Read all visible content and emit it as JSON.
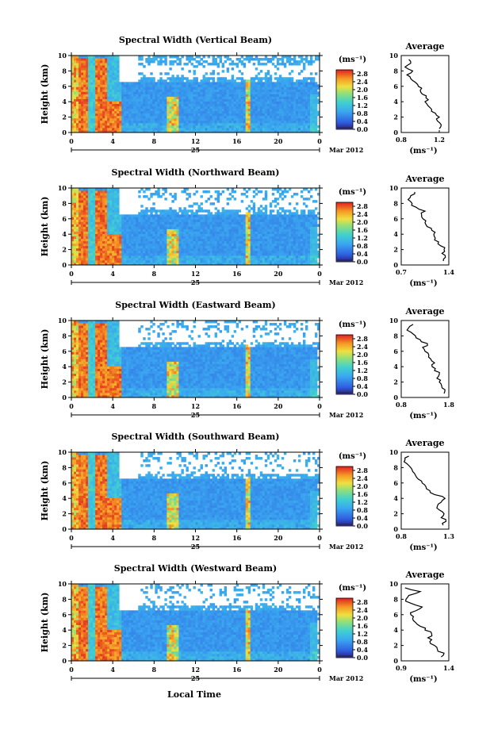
{
  "figure": {
    "xlabel": "Local Time",
    "colorbar_unit": "(ms⁻¹)",
    "average_title": "Average",
    "average_xlabel": "(ms⁻¹)",
    "date_day": "25",
    "date_month_year": "Mar 2012",
    "ylabel": "Height (km)"
  },
  "chart_data": [
    {
      "type": "heatmap",
      "title": "Spectral Width (Vertical Beam)",
      "xlabel": "Local Time",
      "ylabel": "Height (km)",
      "x_ticks": [
        "0",
        "4",
        "8",
        "12",
        "16",
        "20",
        "0"
      ],
      "y_ticks": [
        "0",
        "2",
        "4",
        "6",
        "8",
        "10"
      ],
      "xlim": [
        0,
        24
      ],
      "ylim": [
        0,
        10
      ],
      "colorbar": {
        "ticks": [
          "0.0",
          "0.4",
          "0.8",
          "1.2",
          "1.6",
          "2.0",
          "2.4",
          "2.8"
        ],
        "range": [
          0,
          3.0
        ]
      },
      "average_profile": {
        "x_ticks": [
          "0.8",
          "1.2"
        ],
        "xlim": [
          0.8,
          1.3
        ],
        "heights": [
          0.5,
          1,
          1.5,
          2,
          2.5,
          3,
          3.5,
          4,
          4.5,
          5,
          5.5,
          6,
          6.5,
          7,
          7.5,
          8,
          8.5,
          9,
          9.5
        ],
        "values": [
          1.2,
          1.22,
          1.18,
          1.2,
          1.16,
          1.12,
          1.08,
          1.05,
          1.06,
          1.02,
          1.0,
          0.98,
          0.95,
          0.9,
          0.86,
          0.92,
          0.84,
          0.9,
          0.88
        ]
      }
    },
    {
      "type": "heatmap",
      "title": "Spectral Width (Northward Beam)",
      "xlabel": "Local Time",
      "ylabel": "Height (km)",
      "x_ticks": [
        "0",
        "4",
        "8",
        "12",
        "16",
        "20",
        "0"
      ],
      "y_ticks": [
        "0",
        "2",
        "4",
        "6",
        "8",
        "10"
      ],
      "xlim": [
        0,
        24
      ],
      "ylim": [
        0,
        10
      ],
      "colorbar": {
        "ticks": [
          "0.0",
          "0.4",
          "0.8",
          "1.2",
          "1.6",
          "2.0",
          "2.4",
          "2.8"
        ],
        "range": [
          0,
          3.0
        ]
      },
      "average_profile": {
        "x_ticks": [
          "0.7",
          "1.4"
        ],
        "xlim": [
          0.7,
          1.4
        ],
        "heights": [
          0.5,
          1,
          1.5,
          2,
          2.5,
          3,
          3.5,
          4,
          4.5,
          5,
          5.5,
          6,
          6.5,
          7,
          7.5,
          8,
          8.5,
          9,
          9.5
        ],
        "values": [
          1.32,
          1.35,
          1.3,
          1.33,
          1.28,
          1.25,
          1.2,
          1.18,
          1.15,
          1.08,
          1.05,
          1.02,
          1.0,
          1.05,
          0.92,
          0.86,
          0.8,
          0.84,
          0.9
        ]
      }
    },
    {
      "type": "heatmap",
      "title": "Spectral Width (Eastward Beam)",
      "xlabel": "Local Time",
      "ylabel": "Height (km)",
      "x_ticks": [
        "0",
        "4",
        "8",
        "12",
        "16",
        "20",
        "0"
      ],
      "y_ticks": [
        "0",
        "2",
        "4",
        "6",
        "8",
        "10"
      ],
      "xlim": [
        0,
        24
      ],
      "ylim": [
        0,
        10
      ],
      "colorbar": {
        "ticks": [
          "0.0",
          "0.4",
          "0.8",
          "1.2",
          "1.6",
          "2.0",
          "2.4",
          "2.8"
        ],
        "range": [
          0,
          3.0
        ]
      },
      "average_profile": {
        "x_ticks": [
          "0.8",
          "1.8"
        ],
        "xlim": [
          0.8,
          1.8
        ],
        "heights": [
          0.5,
          1,
          1.5,
          2,
          2.5,
          3,
          3.5,
          4,
          4.5,
          5,
          5.5,
          6,
          6.5,
          7,
          7.5,
          8,
          8.5,
          9,
          9.5
        ],
        "values": [
          1.7,
          1.72,
          1.65,
          1.6,
          1.55,
          1.6,
          1.5,
          1.45,
          1.5,
          1.42,
          1.38,
          1.3,
          1.25,
          1.35,
          1.2,
          1.1,
          1.0,
          0.95,
          1.05
        ]
      }
    },
    {
      "type": "heatmap",
      "title": "Spectral Width (Southward Beam)",
      "xlabel": "Local Time",
      "ylabel": "Height (km)",
      "x_ticks": [
        "0",
        "4",
        "8",
        "12",
        "16",
        "20",
        "0"
      ],
      "y_ticks": [
        "0",
        "2",
        "4",
        "6",
        "8",
        "10"
      ],
      "xlim": [
        0,
        24
      ],
      "ylim": [
        0,
        10
      ],
      "colorbar": {
        "ticks": [
          "0.0",
          "0.4",
          "0.8",
          "1.2",
          "1.6",
          "2.0",
          "2.4",
          "2.8"
        ],
        "range": [
          0,
          3.0
        ]
      },
      "average_profile": {
        "x_ticks": [
          "0.8",
          "1.3"
        ],
        "xlim": [
          0.8,
          1.3
        ],
        "heights": [
          0.5,
          1,
          1.5,
          2,
          2.5,
          3,
          3.5,
          4,
          4.5,
          5,
          5.5,
          6,
          6.5,
          7,
          7.5,
          8,
          8.5,
          9,
          9.5
        ],
        "values": [
          1.24,
          1.27,
          1.22,
          1.25,
          1.2,
          1.18,
          1.22,
          1.26,
          1.15,
          1.1,
          1.06,
          1.02,
          0.98,
          0.95,
          0.92,
          0.9,
          0.86,
          0.84,
          0.88
        ]
      }
    },
    {
      "type": "heatmap",
      "title": "Spectral Width (Westward Beam)",
      "xlabel": "Local Time",
      "ylabel": "Height (km)",
      "x_ticks": [
        "0",
        "4",
        "8",
        "12",
        "16",
        "20",
        "0"
      ],
      "y_ticks": [
        "0",
        "2",
        "4",
        "6",
        "8",
        "10"
      ],
      "xlim": [
        0,
        24
      ],
      "ylim": [
        0,
        10
      ],
      "colorbar": {
        "ticks": [
          "0.0",
          "0.4",
          "0.8",
          "1.2",
          "1.6",
          "2.0",
          "2.4",
          "2.8"
        ],
        "range": [
          0,
          3.0
        ]
      },
      "average_profile": {
        "x_ticks": [
          "0.9",
          "1.4"
        ],
        "xlim": [
          0.9,
          1.4
        ],
        "heights": [
          0.5,
          1,
          1.5,
          2,
          2.5,
          3,
          3.5,
          4,
          4.5,
          5,
          5.5,
          6,
          6.5,
          7,
          7.5,
          8,
          8.5,
          9,
          9.5
        ],
        "values": [
          1.32,
          1.35,
          1.28,
          1.25,
          1.2,
          1.18,
          1.22,
          1.15,
          1.1,
          1.05,
          1.02,
          1.0,
          1.05,
          1.12,
          1.0,
          0.95,
          0.98,
          1.1,
          0.94
        ]
      }
    }
  ]
}
